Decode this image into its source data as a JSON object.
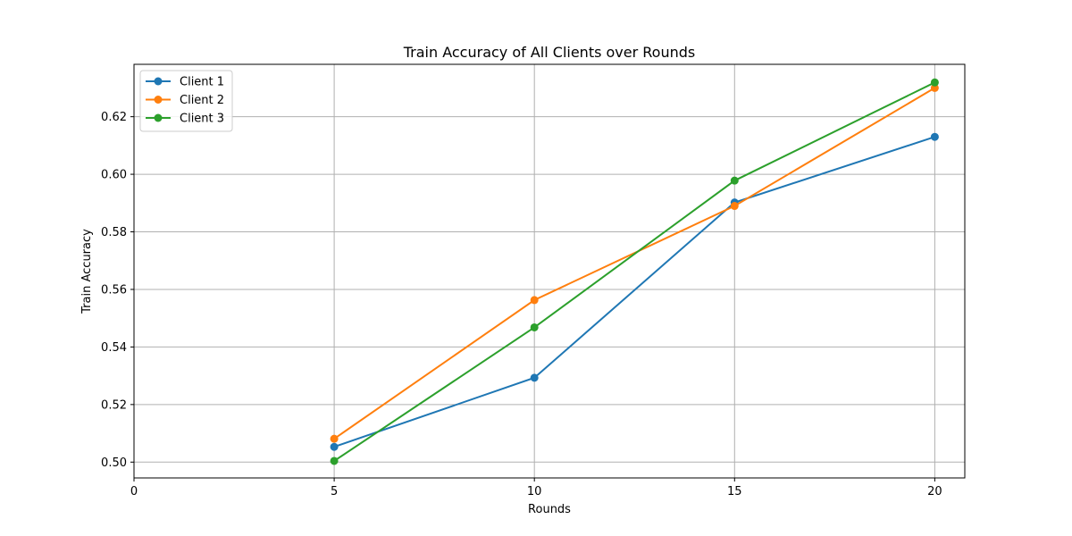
{
  "chart_data": {
    "type": "line",
    "title": "Train Accuracy of All Clients over Rounds",
    "xlabel": "Rounds",
    "ylabel": "Train Accuracy",
    "x": [
      5,
      10,
      15,
      20
    ],
    "xlim": [
      0,
      20.75
    ],
    "ylim": [
      0.4945,
      0.6382
    ],
    "xticks": [
      0,
      5,
      10,
      15,
      20
    ],
    "xtick_labels": [
      "0",
      "5",
      "10",
      "15",
      "20"
    ],
    "yticks": [
      0.5,
      0.52,
      0.54,
      0.56,
      0.58,
      0.6,
      0.62
    ],
    "ytick_labels": [
      "0.50",
      "0.52",
      "0.54",
      "0.56",
      "0.58",
      "0.60",
      "0.62"
    ],
    "grid": true,
    "legend_position": "top-left",
    "series": [
      {
        "name": "Client 1",
        "color": "#1f77b4",
        "values": [
          0.5053,
          0.5293,
          0.5902,
          0.613
        ]
      },
      {
        "name": "Client 2",
        "color": "#ff7f0e",
        "values": [
          0.5081,
          0.5563,
          0.589,
          0.63
        ]
      },
      {
        "name": "Client 3",
        "color": "#2ca02c",
        "values": [
          0.5004,
          0.5468,
          0.5978,
          0.6319
        ]
      }
    ]
  }
}
